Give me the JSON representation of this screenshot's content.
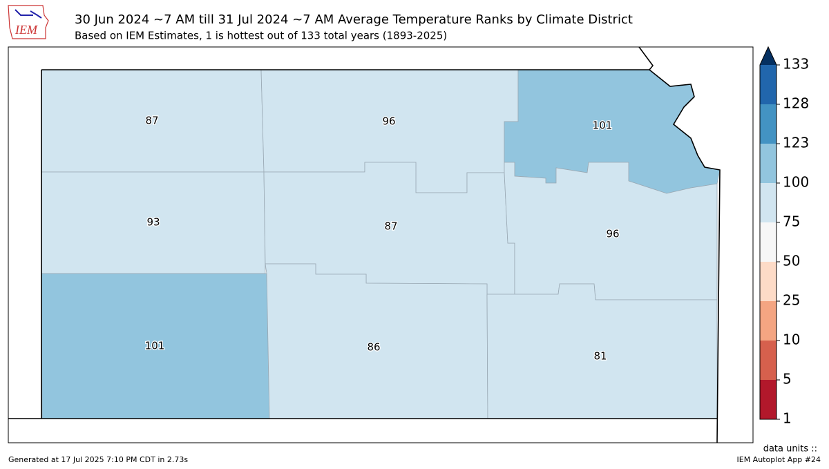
{
  "header": {
    "logo": "IEM",
    "title": "30 Jun 2024 ~7 AM till 31 Jul 2024 ~7 AM Average Temperature Ranks by Climate District",
    "subtitle": "Based on IEM Estimates, 1 is hottest out of 133 total years (1893-2025)"
  },
  "districts": [
    87,
    96,
    101,
    93,
    87,
    96,
    101,
    86,
    81
  ],
  "colorbar": {
    "ticks": [
      1,
      5,
      10,
      25,
      50,
      75,
      100,
      123,
      128,
      133
    ],
    "colors": [
      "#b2182b",
      "#d6604d",
      "#f4a582",
      "#fddbc7",
      "#f7f7f7",
      "#d1e5f0",
      "#92c5de",
      "#4393c3",
      "#2166ac"
    ],
    "extend_color": "#053061",
    "units": "data units ::"
  },
  "footer": {
    "generated": "Generated at 17 Jul 2025 7:10 PM CDT in 2.73s",
    "app": "IEM Autoplot App #24"
  }
}
